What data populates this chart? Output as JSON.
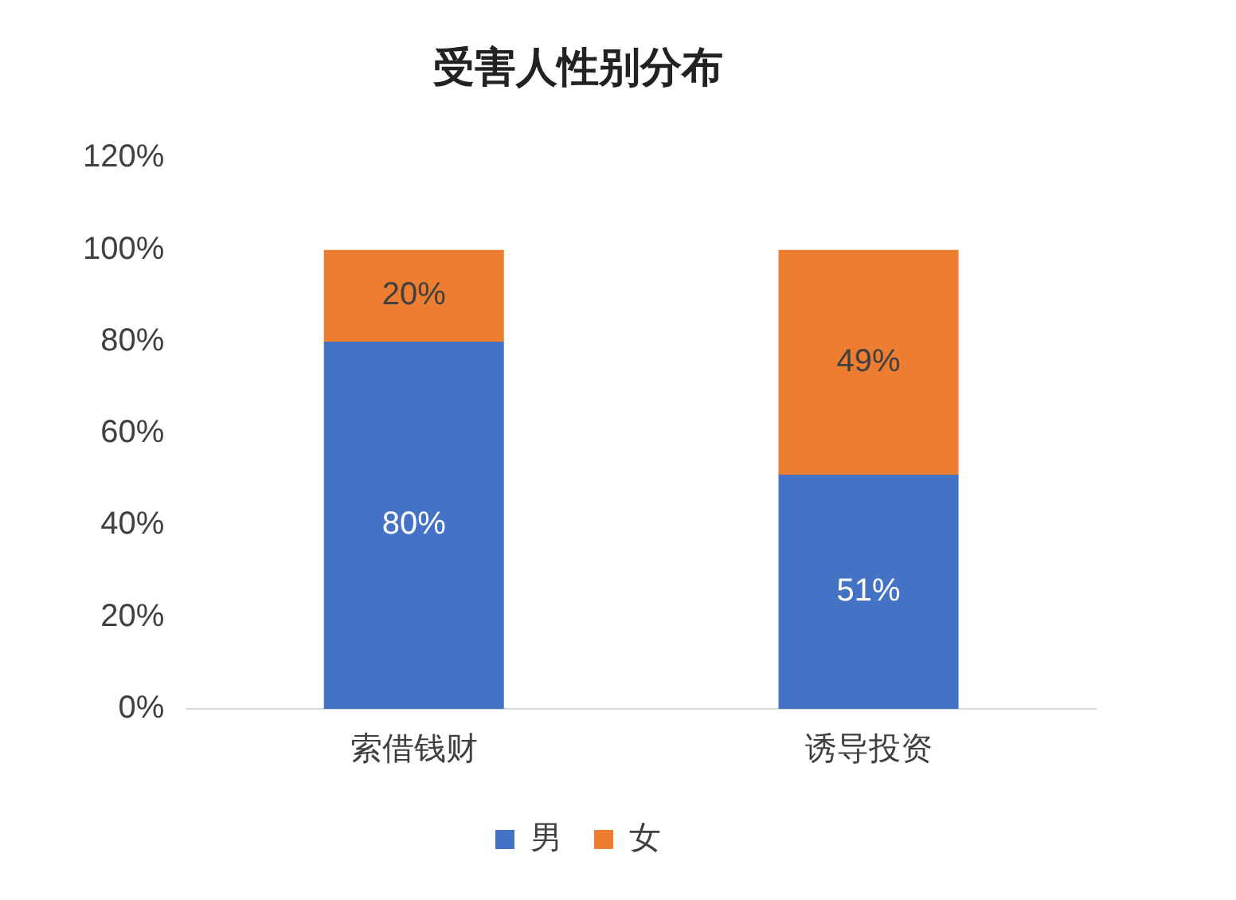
{
  "chart_data": {
    "type": "bar",
    "title": "受害人性别分布",
    "categories": [
      "索借钱财",
      "诱导投资"
    ],
    "stacked": true,
    "series": [
      {
        "name": "男",
        "color": "#4472c4",
        "values": [
          80,
          51
        ],
        "value_labels": [
          "80%",
          "51%"
        ]
      },
      {
        "name": "女",
        "color": "#ed7d31",
        "values": [
          20,
          49
        ],
        "value_labels": [
          "20%",
          "49%"
        ]
      }
    ],
    "ylim": [
      0,
      120
    ],
    "yticks": [
      {
        "value": 0,
        "label": "0%"
      },
      {
        "value": 20,
        "label": "20%"
      },
      {
        "value": 40,
        "label": "40%"
      },
      {
        "value": 60,
        "label": "60%"
      },
      {
        "value": 80,
        "label": "80%"
      },
      {
        "value": 100,
        "label": "100%"
      },
      {
        "value": 120,
        "label": "120%"
      }
    ],
    "grid": false,
    "legend": "bottom"
  }
}
